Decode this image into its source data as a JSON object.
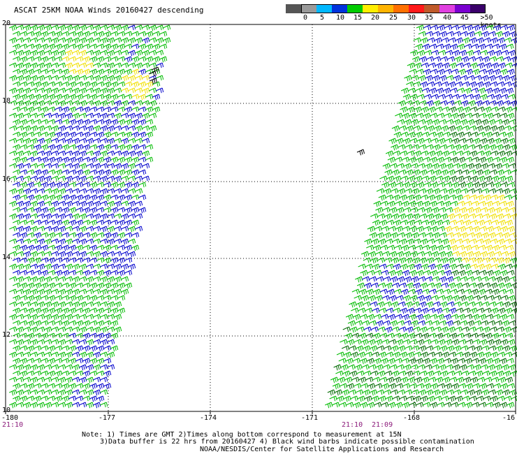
{
  "title": "ASCAT 25KM NOAA Winds 20160427 descending",
  "legend": {
    "colors": [
      "#555555",
      "#9a9a9a",
      "#00b8ff",
      "#0033dd",
      "#00cc00",
      "#ffee00",
      "#ffb400",
      "#ff7000",
      "#ff1a1a",
      "#c05a2a",
      "#e040e0",
      "#7a00d0",
      "#3a006a"
    ],
    "tick_labels": [
      "0",
      "5",
      "10",
      "15",
      "20",
      "25",
      "30",
      "35",
      "40",
      "45",
      ">50 knots"
    ],
    "unit": "knots"
  },
  "axes": {
    "lon_labels": [
      "-180",
      "-177",
      "-174",
      "-171",
      "-168",
      "-16"
    ],
    "lat_labels": [
      "20",
      "18",
      "16",
      "14",
      "12",
      "10"
    ]
  },
  "times": {
    "left": "21:10",
    "right_a": "21:10",
    "right_b": "21:09"
  },
  "notes": {
    "line1": "Note: 1) Times are GMT 2)Times along bottom correspond to measurement at 15N",
    "line2": "3)Data buffer is 22 hrs from 20160427 4) Black wind barbs indicate possible contamination",
    "line3": "NOAA/NESDIS/Center for Satellite Applications and Research"
  },
  "barb_colors": {
    "blue": "#0000cc",
    "green": "#00bb00",
    "dark_green": "#006a00",
    "yellow": "#f0e000",
    "black": "#000000"
  }
}
